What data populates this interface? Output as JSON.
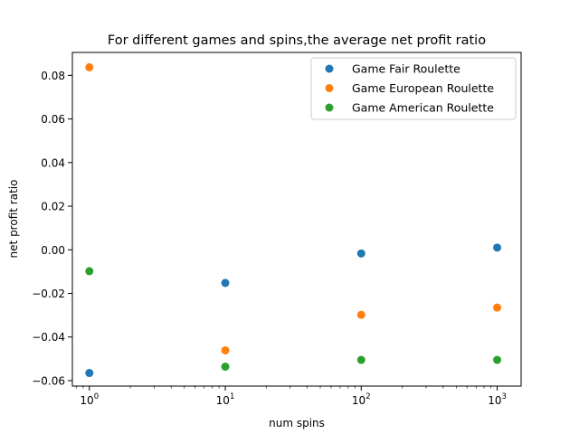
{
  "chart_data": {
    "type": "scatter",
    "title": "For different games and  spins,the average net profit ratio",
    "xlabel": "num spins",
    "ylabel": "net profit ratio",
    "xscale": "log",
    "xlim": [
      0.75,
      1500
    ],
    "ylim": [
      -0.0625,
      0.0905
    ],
    "x_ticks": [
      1,
      10,
      100,
      1000
    ],
    "x_tick_labels": [
      {
        "base": "10",
        "exp": "0"
      },
      {
        "base": "10",
        "exp": "1"
      },
      {
        "base": "10",
        "exp": "2"
      },
      {
        "base": "10",
        "exp": "3"
      }
    ],
    "y_ticks": [
      -0.06,
      -0.04,
      -0.02,
      0.0,
      0.02,
      0.04,
      0.06,
      0.08
    ],
    "y_tick_labels": [
      "−0.06",
      "−0.04",
      "−0.02",
      "0.00",
      "0.02",
      "0.04",
      "0.06",
      "0.08"
    ],
    "grid": false,
    "legend_position": "top-right",
    "series": [
      {
        "name": "Game Fair Roulette",
        "color": "#1f77b4",
        "x": [
          1,
          10,
          100,
          1000
        ],
        "y": [
          -0.0565,
          -0.0152,
          -0.0017,
          0.001
        ]
      },
      {
        "name": "Game European Roulette",
        "color": "#ff7f0e",
        "x": [
          1,
          10,
          100,
          1000
        ],
        "y": [
          0.0837,
          -0.0461,
          -0.0298,
          -0.0265
        ]
      },
      {
        "name": "Game American Roulette",
        "color": "#2ca02c",
        "x": [
          1,
          10,
          100,
          1000
        ],
        "y": [
          -0.0098,
          -0.0536,
          -0.0505,
          -0.0505
        ]
      }
    ]
  }
}
